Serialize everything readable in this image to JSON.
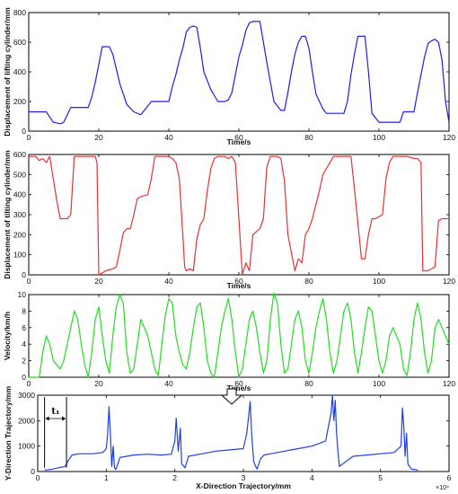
{
  "chart_data": [
    {
      "type": "line",
      "ylabel": "Displacement of lifting cylinder/mm",
      "xlabel": "Time/s",
      "xlim": [
        0,
        120
      ],
      "ylim": [
        0,
        800
      ],
      "xticks": [
        0,
        20,
        40,
        60,
        80,
        100,
        120
      ],
      "yticks": [
        0,
        200,
        400,
        600,
        800
      ],
      "grid": false,
      "series": [
        {
          "color": "#1f1fe6",
          "x": [
            0,
            5,
            7,
            9,
            10,
            12,
            17,
            18,
            19,
            20,
            21,
            22,
            23,
            24,
            25,
            26,
            27,
            28,
            30,
            32,
            34,
            35,
            36,
            40,
            41,
            42,
            43,
            44,
            45,
            46,
            47,
            48,
            49,
            50,
            52,
            54,
            56,
            57,
            58,
            59,
            60,
            61,
            62,
            63,
            64,
            66,
            68,
            70,
            72,
            73,
            74,
            75,
            76,
            77,
            78,
            79,
            80,
            81,
            82,
            84,
            85,
            86,
            88,
            90,
            91,
            92,
            93,
            94,
            95,
            96,
            97,
            98,
            100,
            104,
            106,
            107,
            108,
            109,
            110,
            111,
            112,
            113,
            114,
            115,
            116,
            117,
            118,
            119,
            120
          ],
          "y": [
            130,
            130,
            60,
            50,
            60,
            160,
            160,
            230,
            330,
            450,
            570,
            570,
            570,
            520,
            420,
            320,
            250,
            180,
            130,
            110,
            170,
            200,
            200,
            200,
            300,
            380,
            480,
            560,
            670,
            700,
            710,
            700,
            560,
            400,
            280,
            200,
            200,
            210,
            260,
            380,
            500,
            580,
            680,
            730,
            740,
            740,
            460,
            200,
            140,
            140,
            260,
            400,
            520,
            600,
            640,
            640,
            560,
            400,
            250,
            150,
            120,
            120,
            120,
            120,
            200,
            380,
            520,
            640,
            640,
            640,
            400,
            120,
            60,
            60,
            60,
            130,
            130,
            130,
            130,
            260,
            380,
            500,
            590,
            610,
            620,
            600,
            480,
            200,
            60
          ]
        }
      ]
    },
    {
      "type": "line",
      "ylabel": "Displacement of tilting cylinder/mm",
      "xlabel": "Time/s",
      "xlim": [
        0,
        120
      ],
      "ylim": [
        0,
        600
      ],
      "xticks": [
        0,
        20,
        40,
        60,
        80,
        100,
        120
      ],
      "yticks": [
        0,
        100,
        200,
        300,
        400,
        500,
        600
      ],
      "grid": false,
      "series": [
        {
          "color": "#e63232",
          "x": [
            0,
            2,
            3,
            4,
            5,
            6,
            7,
            8,
            9,
            11,
            12,
            13,
            14,
            19,
            19.5,
            20,
            21,
            22,
            24,
            25,
            26,
            27,
            28,
            29,
            30,
            31,
            32,
            34,
            35,
            36,
            37,
            38,
            39,
            40,
            41,
            42,
            43,
            44,
            44.5,
            45,
            46,
            47,
            48,
            49,
            50,
            51,
            52,
            53,
            54,
            55,
            56,
            57,
            58,
            59,
            61,
            62,
            63,
            64,
            66,
            67,
            67.5,
            68,
            69,
            70,
            71,
            72,
            73,
            74,
            76,
            77,
            78,
            79,
            80,
            81,
            82,
            83,
            84,
            86,
            87,
            88,
            89,
            90,
            91,
            92,
            93,
            95,
            96,
            97,
            98,
            99,
            100,
            101,
            102,
            103,
            104,
            106,
            108,
            110,
            111,
            112,
            112.5,
            113,
            114,
            116,
            117,
            118,
            120
          ],
          "y": [
            590,
            590,
            570,
            580,
            560,
            590,
            480,
            370,
            280,
            280,
            300,
            590,
            590,
            590,
            560,
            0,
            10,
            20,
            30,
            40,
            120,
            210,
            230,
            230,
            300,
            380,
            390,
            400,
            480,
            590,
            590,
            590,
            590,
            590,
            580,
            560,
            480,
            200,
            40,
            20,
            30,
            20,
            180,
            250,
            280,
            420,
            530,
            580,
            590,
            590,
            590,
            580,
            590,
            560,
            0,
            60,
            20,
            200,
            230,
            280,
            420,
            540,
            590,
            590,
            590,
            580,
            470,
            200,
            20,
            80,
            60,
            200,
            230,
            280,
            350,
            420,
            500,
            560,
            590,
            590,
            590,
            590,
            590,
            590,
            430,
            80,
            80,
            200,
            280,
            280,
            290,
            300,
            480,
            560,
            590,
            590,
            590,
            580,
            580,
            560,
            20,
            20,
            20,
            40,
            270,
            280,
            280
          ]
        }
      ]
    },
    {
      "type": "line",
      "ylabel": "Velocity/km/h",
      "xlabel": "Time/s",
      "xlim": [
        0,
        120
      ],
      "ylim": [
        0,
        10
      ],
      "xticks": [
        0,
        20,
        40,
        60,
        80,
        100,
        120
      ],
      "yticks": [
        0,
        2,
        4,
        6,
        8,
        10
      ],
      "grid": false,
      "series": [
        {
          "color": "#22dd22",
          "x": [
            0,
            3,
            4,
            5,
            6,
            7,
            8,
            9,
            10,
            11,
            12,
            13,
            14,
            15,
            16,
            17,
            18,
            19,
            20,
            21,
            22,
            23,
            24,
            25,
            26,
            27,
            28,
            29,
            30,
            31,
            32,
            33,
            34,
            35,
            36,
            37,
            38,
            39,
            40,
            41,
            42,
            43,
            44,
            45,
            46,
            47,
            48,
            49,
            50,
            51,
            52,
            53,
            54,
            55,
            56,
            57,
            58,
            59,
            60,
            61,
            62,
            63,
            64,
            65,
            66,
            67,
            68,
            69,
            70,
            71,
            72,
            73,
            74,
            75,
            76,
            77,
            78,
            79,
            80,
            81,
            82,
            83,
            84,
            85,
            86,
            87,
            88,
            89,
            90,
            91,
            92,
            93,
            94,
            95,
            96,
            97,
            98,
            99,
            100,
            101,
            102,
            103,
            104,
            105,
            106,
            107,
            108,
            109,
            110,
            111,
            112,
            113,
            114,
            115,
            116,
            117,
            118,
            119,
            120
          ],
          "y": [
            0,
            0,
            3,
            5,
            4,
            2,
            1.5,
            1,
            2,
            4,
            6,
            8,
            7,
            4,
            1.5,
            0,
            3,
            7,
            8.5,
            5,
            2,
            0.5,
            5,
            8.5,
            10,
            9,
            3,
            0.5,
            1,
            4,
            7,
            6,
            5,
            3,
            1,
            0.2,
            4,
            7.5,
            9.5,
            9,
            5,
            3,
            1.5,
            1,
            3,
            6,
            8.5,
            9,
            6,
            2,
            0.5,
            0,
            3,
            6,
            8,
            9.5,
            7,
            3,
            0,
            1,
            4,
            7,
            8,
            6,
            3,
            0.5,
            2,
            7,
            10.2,
            9,
            4,
            0.5,
            1,
            4,
            7,
            8,
            6,
            2,
            0.5,
            3,
            6,
            8,
            9.5,
            7,
            3,
            0.5,
            2,
            5,
            8,
            9,
            7,
            3,
            0.5,
            3,
            6,
            8.5,
            8,
            5,
            2,
            0.5,
            2,
            5,
            6,
            5,
            4,
            1,
            0.2,
            3,
            7,
            9,
            7,
            3,
            0.5,
            2,
            6,
            7,
            6,
            5,
            4
          ]
        }
      ]
    },
    {
      "type": "line",
      "ylabel": "Y-Direction Trajectory/mm",
      "xlabel": "X-Direction Trajectory/mm",
      "xlim": [
        0,
        6
      ],
      "ylim": [
        0,
        3000
      ],
      "xticks": [
        0,
        1,
        2,
        3,
        4,
        5,
        6
      ],
      "yticks": [
        0,
        1000,
        2000,
        3000
      ],
      "x_multiplier": "×10⁴",
      "grid": false,
      "annotation": "t₁",
      "series": [
        {
          "color": "#1f3fe6",
          "x": [
            0.1,
            0.2,
            0.3,
            0.4,
            0.45,
            0.5,
            0.6,
            0.8,
            0.95,
            1.0,
            1.02,
            1.04,
            1.06,
            1.08,
            1.1,
            1.12,
            1.14,
            1.2,
            1.4,
            1.6,
            1.8,
            1.95,
            2.0,
            2.02,
            2.05,
            2.08,
            2.1,
            2.15,
            2.2,
            2.4,
            2.6,
            2.8,
            3.0,
            3.05,
            3.1,
            3.12,
            3.15,
            3.18,
            3.2,
            3.25,
            3.3,
            3.4,
            3.6,
            3.8,
            4.0,
            4.2,
            4.28,
            4.3,
            4.32,
            4.34,
            4.36,
            4.38,
            4.4,
            4.5,
            4.6,
            4.8,
            5.0,
            5.2,
            5.3,
            5.32,
            5.34,
            5.36,
            5.38,
            5.4,
            5.45,
            5.5,
            5.55
          ],
          "y": [
            60,
            80,
            150,
            200,
            450,
            650,
            700,
            700,
            750,
            900,
            1500,
            2550,
            1500,
            200,
            1000,
            150,
            80,
            550,
            650,
            680,
            650,
            680,
            1200,
            2100,
            800,
            1700,
            300,
            150,
            600,
            700,
            800,
            850,
            900,
            1500,
            2750,
            1500,
            400,
            200,
            100,
            500,
            650,
            700,
            800,
            900,
            1000,
            1200,
            2300,
            3000,
            2000,
            2800,
            1500,
            800,
            200,
            400,
            600,
            650,
            700,
            750,
            1000,
            2500,
            1800,
            600,
            1500,
            300,
            100,
            80,
            50
          ]
        }
      ]
    }
  ]
}
